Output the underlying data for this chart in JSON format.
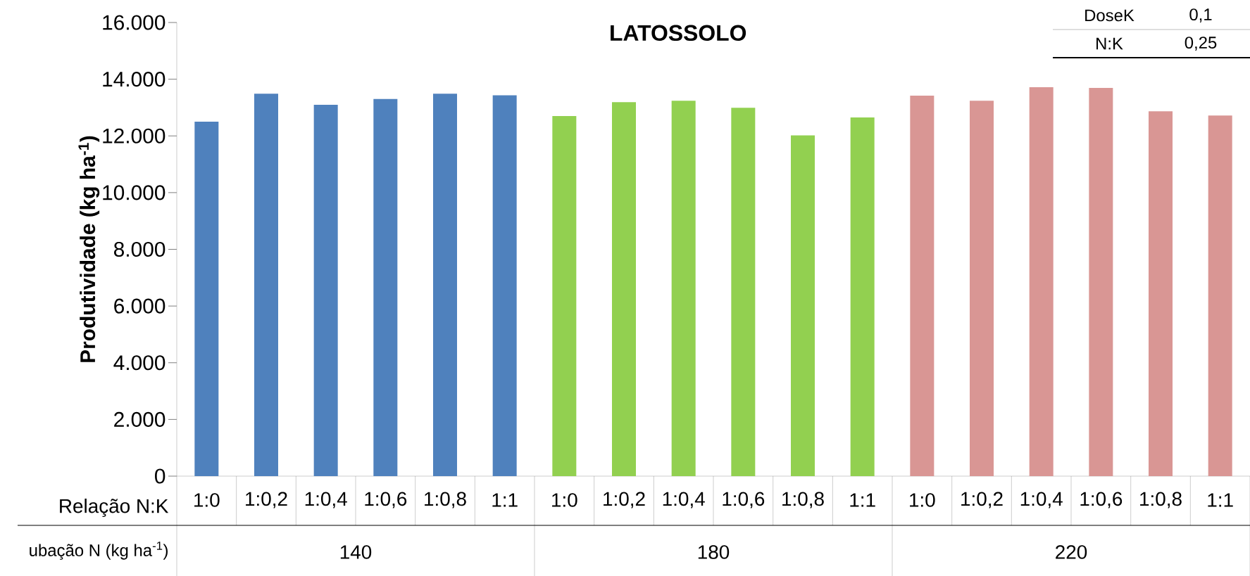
{
  "chart_data": {
    "type": "bar",
    "title": "LATOSSOLO",
    "ylabel": "Produtividade (kg ha$^{-1}$)",
    "categories": [
      "1:0",
      "1:0,2",
      "1:0,4",
      "1:0,6",
      "1:0,8",
      "1:1",
      "1:0",
      "1:0,2",
      "1:0,4",
      "1:0,6",
      "1:0,8",
      "1:1",
      "1:0",
      "1:0,2",
      "1:0,4",
      "1:0,6",
      "1:0,8",
      "1:1"
    ],
    "values": [
      12500,
      13490,
      13100,
      13300,
      13490,
      13430,
      12700,
      13190,
      13240,
      12990,
      12020,
      12650,
      13420,
      13240,
      13720,
      13690,
      12870,
      12720
    ],
    "colors": [
      "#4f81bd",
      "#4f81bd",
      "#4f81bd",
      "#4f81bd",
      "#4f81bd",
      "#4f81bd",
      "#92d050",
      "#92d050",
      "#92d050",
      "#92d050",
      "#92d050",
      "#92d050",
      "#d99694",
      "#d99694",
      "#d99694",
      "#d99694",
      "#d99694",
      "#d99694"
    ],
    "ylim": [
      0,
      16000
    ],
    "yticks": [
      {
        "value": 0,
        "label": "0"
      },
      {
        "value": 2000,
        "label": "2.000"
      },
      {
        "value": 4000,
        "label": "4.000"
      },
      {
        "value": 6000,
        "label": "6.000"
      },
      {
        "value": 8000,
        "label": "8.000"
      },
      {
        "value": 10000,
        "label": "10.000"
      },
      {
        "value": 12000,
        "label": "12.000"
      },
      {
        "value": 14000,
        "label": "14.000"
      },
      {
        "value": 16000,
        "label": "16.000"
      }
    ],
    "annotations": [
      "Relação N:K",
      "ubação N (kg ha$^{-1}$)",
      "140",
      "180",
      "220",
      "DoseK",
      "0,1",
      "N:K",
      "0,25"
    ]
  }
}
